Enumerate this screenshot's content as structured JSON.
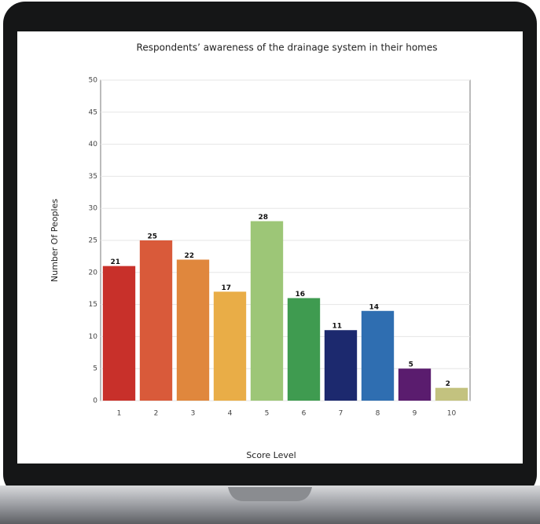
{
  "chart_data": {
    "type": "bar",
    "title": "Respondents’ awareness of the drainage system in their homes",
    "x_label": "Score Level",
    "y_label": "Number Of Peoples",
    "categories": [
      "1",
      "2",
      "3",
      "4",
      "5",
      "6",
      "7",
      "8",
      "9",
      "10"
    ],
    "values": [
      21,
      25,
      22,
      17,
      28,
      16,
      11,
      14,
      5,
      2
    ],
    "colors": [
      "#c8302a",
      "#d95a3a",
      "#e0873d",
      "#e9ad47",
      "#9dc677",
      "#3f9b50",
      "#1c296e",
      "#2f6eb1",
      "#5a1c6e",
      "#c3c27f"
    ],
    "ylim": [
      0,
      50
    ],
    "yticks": [
      0,
      5,
      10,
      15,
      20,
      25,
      30,
      35,
      40,
      45,
      50
    ],
    "grid": true
  }
}
